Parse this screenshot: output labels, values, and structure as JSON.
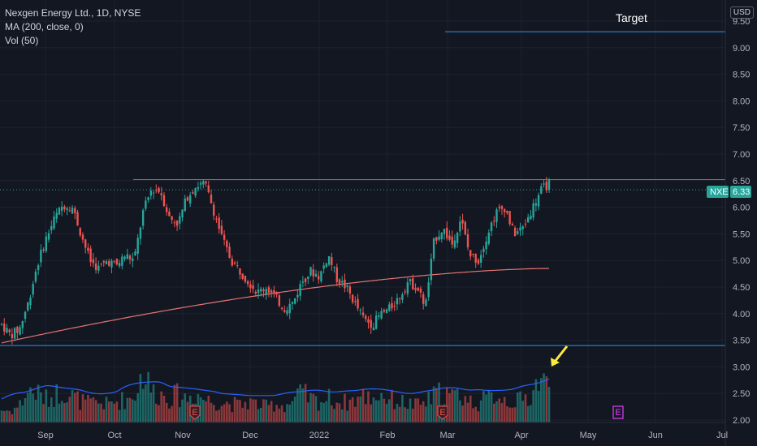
{
  "legend": {
    "title": "Nexgen Energy Ltd., 1D, NYSE",
    "ma": "MA (200, close, 0)",
    "vol": "Vol (50)"
  },
  "currency": "USD",
  "target_label": "Target",
  "price_badge": {
    "symbol": "NXE",
    "value": "6.33"
  },
  "earnings_marker": "E",
  "colors": {
    "background": "#131722",
    "up": "#26a69a",
    "down": "#ef5350",
    "ma": "#e57373",
    "vol_ma": "#2962ff",
    "line": "#2196f3",
    "badge": "#26a69a",
    "arrow": "#ffeb3b",
    "earnings_future": "#e040fb"
  },
  "chart_data": {
    "type": "candlestick",
    "y_range": [
      1.95,
      9.5
    ],
    "y_ticks": [
      "2.00",
      "2.50",
      "3.00",
      "3.50",
      "4.00",
      "4.50",
      "5.00",
      "5.50",
      "6.00",
      "6.50",
      "7.00",
      "7.50",
      "8.00",
      "8.50",
      "9.00",
      "9.50"
    ],
    "x_labels": [
      "Sep",
      "Oct",
      "Nov",
      "Dec",
      "2022",
      "Feb",
      "Mar",
      "Apr",
      "May",
      "Jun",
      "Jul"
    ],
    "horizontal_lines": [
      {
        "label": "Target",
        "price": 9.3
      },
      {
        "price": 6.52
      },
      {
        "price": 3.4
      }
    ],
    "last_price": 6.33,
    "price_path": [
      3.8,
      3.6,
      3.7,
      4.2,
      4.9,
      5.4,
      5.8,
      6.05,
      6.0,
      5.5,
      5.0,
      4.85,
      5.0,
      4.9,
      5.1,
      5.0,
      5.9,
      6.35,
      6.3,
      5.8,
      5.7,
      6.2,
      6.4,
      6.45,
      5.95,
      5.4,
      5.0,
      4.8,
      4.6,
      4.4,
      4.5,
      4.3,
      4.1,
      4.2,
      4.6,
      4.8,
      4.7,
      5.1,
      4.65,
      4.5,
      4.2,
      3.9,
      3.8,
      4.0,
      4.1,
      4.3,
      4.6,
      4.5,
      4.15,
      5.4,
      5.6,
      5.3,
      5.8,
      5.1,
      5.0,
      5.5,
      5.9,
      6.0,
      5.5,
      5.6,
      5.95,
      6.3,
      6.45
    ],
    "volume_path": [
      0.12,
      0.11,
      0.16,
      0.3,
      0.28,
      0.22,
      0.26,
      0.31,
      0.25,
      0.2,
      0.18,
      0.19,
      0.17,
      0.2,
      0.22,
      0.25,
      0.48,
      0.3,
      0.27,
      0.24,
      0.26,
      0.23,
      0.28,
      0.22,
      0.2,
      0.19,
      0.18,
      0.16,
      0.2,
      0.17,
      0.15,
      0.18,
      0.16,
      0.2,
      0.28,
      0.22,
      0.2,
      0.23,
      0.2,
      0.19,
      0.22,
      0.25,
      0.24,
      0.27,
      0.22,
      0.2,
      0.18,
      0.16,
      0.19,
      0.25,
      0.3,
      0.24,
      0.27,
      0.2,
      0.19,
      0.22,
      0.28,
      0.22,
      0.2,
      0.21,
      0.26,
      0.45,
      0.3
    ],
    "ma200_start": 3.45,
    "ma200_end": 4.85,
    "earnings_dates": [
      "Nov",
      "Mar",
      "May"
    ]
  }
}
